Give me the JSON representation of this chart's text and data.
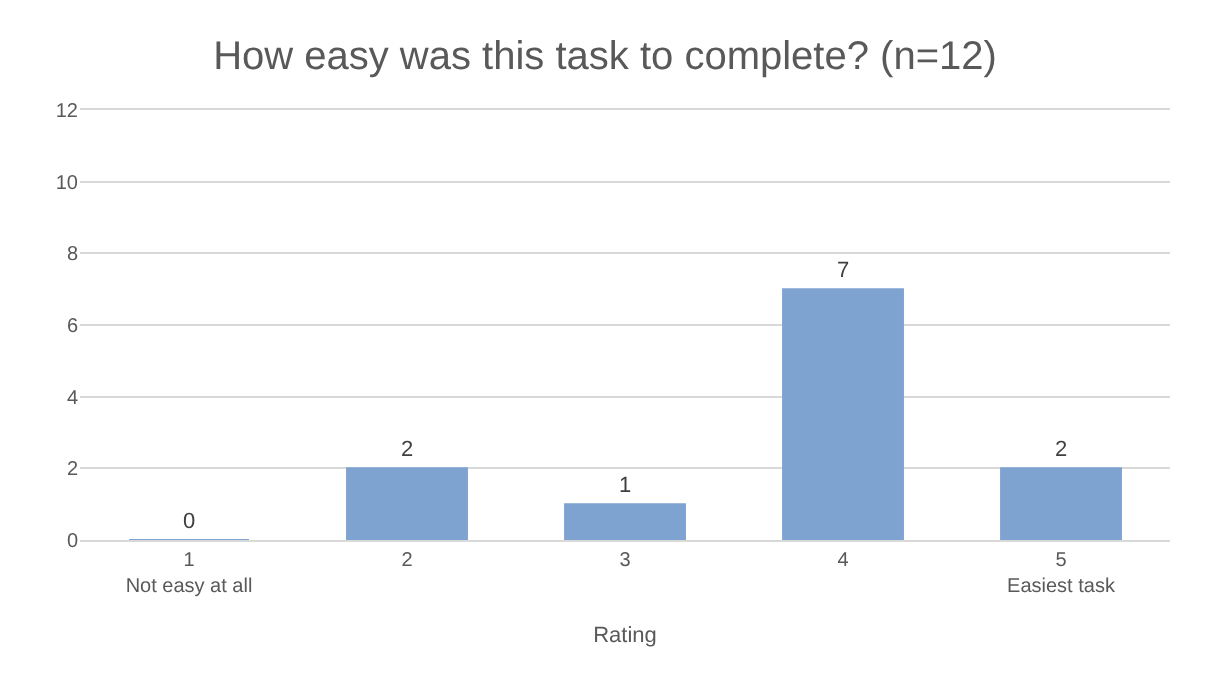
{
  "chart_data": {
    "type": "bar",
    "title": "How easy was this task to complete? (n=12)",
    "xlabel": "Rating",
    "categories": [
      "1\nNot easy at all",
      "2",
      "3",
      "4",
      "5\nEasiest task"
    ],
    "values": [
      0,
      2,
      1,
      7,
      2
    ],
    "color": "#7fa3d1",
    "ylim": [
      0,
      12
    ],
    "yticks": [
      0,
      2,
      4,
      6,
      8,
      10,
      12
    ],
    "grid": "y",
    "data_labels": true,
    "legend": false
  }
}
